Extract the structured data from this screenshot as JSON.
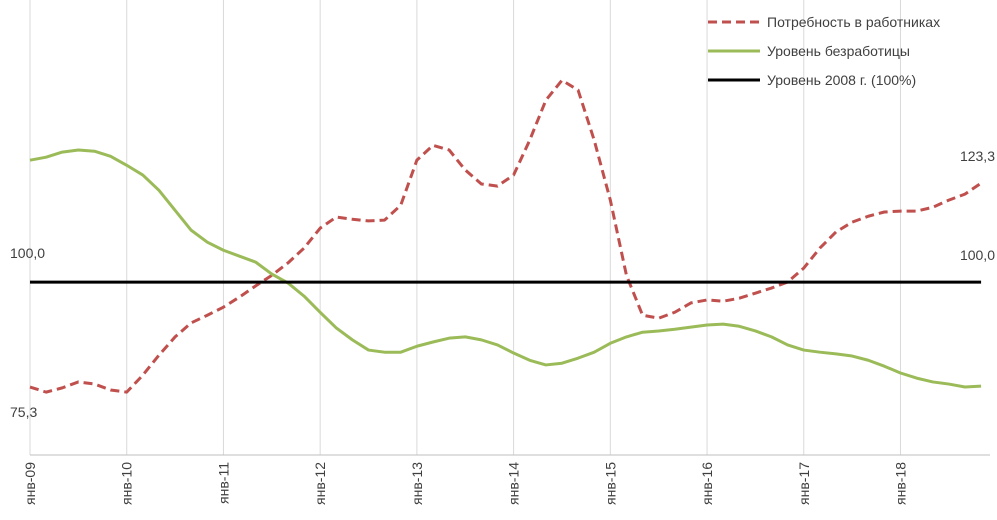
{
  "chart_data": {
    "type": "line",
    "categories": [
      "янв-09",
      null,
      null,
      null,
      null,
      null,
      "янв-10",
      null,
      null,
      null,
      null,
      null,
      "янв-11",
      null,
      null,
      null,
      null,
      null,
      "янв-12",
      null,
      null,
      null,
      null,
      null,
      "янв-13",
      null,
      null,
      null,
      null,
      null,
      "янв-14",
      null,
      null,
      null,
      null,
      null,
      "янв-15",
      null,
      null,
      null,
      null,
      null,
      "янв-16",
      null,
      null,
      null,
      null,
      null,
      "янв-17",
      null,
      null,
      null,
      null,
      null,
      "янв-18",
      null,
      null,
      null,
      null,
      null
    ],
    "ylim": [
      59.3,
      166.4
    ],
    "grid": true,
    "legend": "top-right",
    "series": [
      {
        "name": "Потребность в работниках",
        "color": "#c0504d",
        "dashed": true,
        "values": [
          75.3,
          74.1,
          75.1,
          76.5,
          76.0,
          74.6,
          74.1,
          78.1,
          82.8,
          87.1,
          90.4,
          92.2,
          94.1,
          96.5,
          99.1,
          101.6,
          104.5,
          108.0,
          112.7,
          115.3,
          114.8,
          114.4,
          114.6,
          118.1,
          128.7,
          132.2,
          131.1,
          126.4,
          123.1,
          122.6,
          125.2,
          133.4,
          142.8,
          147.5,
          145.2,
          133.4,
          119.3,
          101.6,
          92.2,
          91.5,
          92.9,
          95.1,
          95.8,
          95.5,
          96.2,
          97.4,
          98.6,
          100.0,
          103.3,
          108.0,
          111.8,
          114.1,
          115.5,
          116.5,
          116.7,
          116.7,
          117.6,
          119.3,
          120.7,
          123.3
        ],
        "value_labels": [
          "75,3",
          null,
          null,
          null,
          null,
          null,
          null,
          null,
          null,
          null,
          null,
          null,
          null,
          null,
          null,
          null,
          null,
          null,
          null,
          null,
          null,
          null,
          null,
          null,
          null,
          null,
          null,
          null,
          null,
          null,
          null,
          null,
          null,
          null,
          null,
          null,
          null,
          null,
          null,
          null,
          null,
          null,
          null,
          null,
          null,
          null,
          null,
          null,
          null,
          null,
          null,
          null,
          null,
          null,
          null,
          null,
          null,
          null,
          null,
          "123,3"
        ]
      },
      {
        "name": "Уровень безработицы",
        "color": "#9bbb59",
        "dashed": false,
        "values": [
          128.7,
          129.4,
          130.6,
          131.1,
          130.8,
          129.6,
          127.5,
          125.2,
          121.6,
          116.9,
          112.2,
          109.4,
          107.5,
          106.1,
          104.7,
          101.9,
          99.8,
          96.7,
          92.9,
          89.2,
          86.4,
          84.0,
          83.5,
          83.5,
          84.9,
          85.9,
          86.8,
          87.1,
          86.4,
          85.2,
          83.3,
          81.6,
          80.5,
          80.9,
          82.1,
          83.5,
          85.6,
          87.1,
          88.2,
          88.5,
          88.9,
          89.4,
          89.9,
          90.1,
          89.6,
          88.5,
          87.1,
          85.2,
          84.0,
          83.5,
          83.1,
          82.6,
          81.6,
          80.2,
          78.6,
          77.4,
          76.5,
          76.0,
          75.3,
          75.5
        ]
      },
      {
        "name": "Уровень 2008 г. (100%)",
        "color": "#000000",
        "dashed": false,
        "values": [
          100,
          100,
          100,
          100,
          100,
          100,
          100,
          100,
          100,
          100,
          100,
          100,
          100,
          100,
          100,
          100,
          100,
          100,
          100,
          100,
          100,
          100,
          100,
          100,
          100,
          100,
          100,
          100,
          100,
          100,
          100,
          100,
          100,
          100,
          100,
          100,
          100,
          100,
          100,
          100,
          100,
          100,
          100,
          100,
          100,
          100,
          100,
          100,
          100,
          100,
          100,
          100,
          100,
          100,
          100,
          100,
          100,
          100,
          100,
          100
        ],
        "value_labels": [
          "100,0",
          null,
          null,
          null,
          null,
          null,
          null,
          null,
          null,
          null,
          null,
          null,
          null,
          null,
          null,
          null,
          null,
          null,
          null,
          null,
          null,
          null,
          null,
          null,
          null,
          null,
          null,
          null,
          null,
          null,
          null,
          null,
          null,
          null,
          null,
          null,
          null,
          null,
          null,
          null,
          null,
          null,
          null,
          null,
          null,
          null,
          null,
          null,
          null,
          null,
          null,
          null,
          null,
          null,
          null,
          null,
          null,
          null,
          null,
          "100,0"
        ]
      }
    ]
  }
}
